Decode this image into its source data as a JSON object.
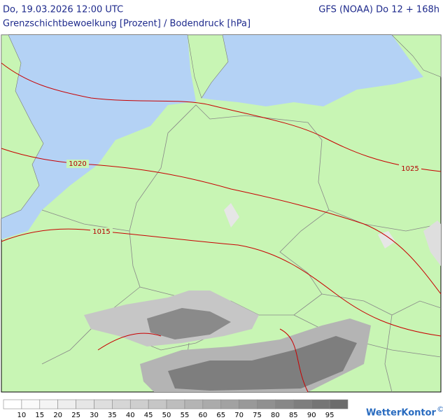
{
  "header": {
    "valid_time": "Do, 19.03.2026 12:00 UTC",
    "model": "GFS (NOAA) Do 12 + 168h",
    "subtitle": "Grenzschichtbewoelkung [Prozent] / Bodendruck [hPa]"
  },
  "isobars": [
    {
      "label": "1020"
    },
    {
      "label": "1025"
    },
    {
      "label": "1015"
    }
  ],
  "legend": {
    "levels": [
      10,
      15,
      20,
      25,
      30,
      35,
      40,
      45,
      50,
      55,
      60,
      65,
      70,
      75,
      80,
      85,
      90,
      95
    ],
    "colors": [
      "#ffffff",
      "#fafafa",
      "#f4f4f4",
      "#eeeeee",
      "#e6e6e6",
      "#dedede",
      "#d6d6d6",
      "#cecece",
      "#c6c6c6",
      "#bdbdbd",
      "#b4b4b4",
      "#ababab",
      "#a2a2a2",
      "#999999",
      "#909090",
      "#878787",
      "#7e7e7e",
      "#757575",
      "#6c6c6c"
    ]
  },
  "logo": "WetterKontor",
  "copyright": "©"
}
